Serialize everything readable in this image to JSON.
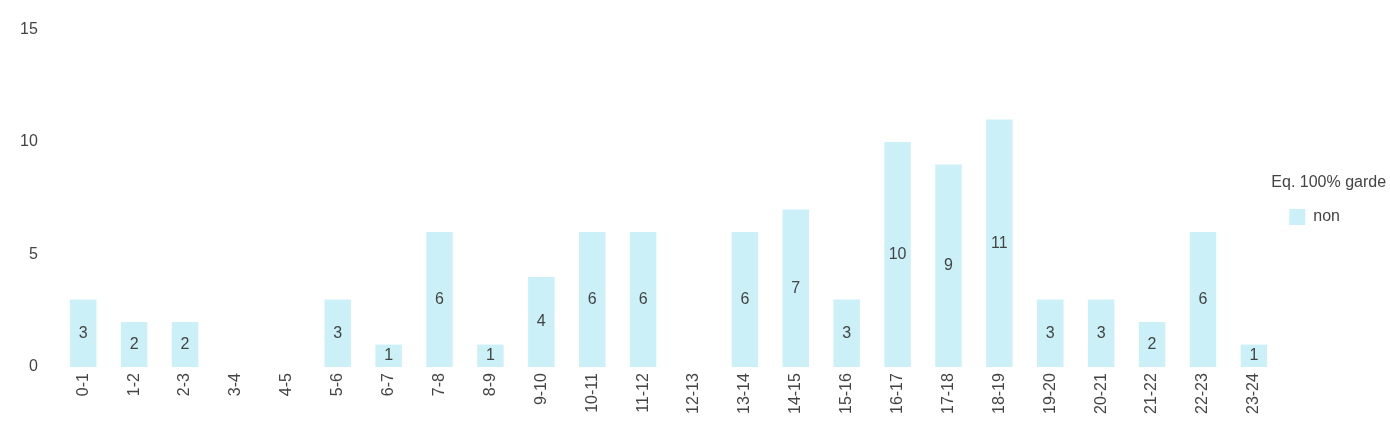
{
  "chart_data": {
    "type": "bar",
    "legend_title": "Eq. 100% garde",
    "categories": [
      "0-1",
      "1-2",
      "2-3",
      "3-4",
      "4-5",
      "5-6",
      "6-7",
      "7-8",
      "8-9",
      "9-10",
      "10-11",
      "11-12",
      "12-13",
      "13-14",
      "14-15",
      "15-16",
      "16-17",
      "17-18",
      "18-19",
      "19-20",
      "20-21",
      "21-22",
      "22-23",
      "23-24"
    ],
    "series": [
      {
        "name": "non",
        "color": "#ccf0f8",
        "values": [
          3,
          2,
          2,
          0,
          0,
          3,
          1,
          6,
          1,
          4,
          6,
          6,
          0,
          6,
          7,
          3,
          10,
          9,
          11,
          3,
          3,
          2,
          6,
          1
        ],
        "value_labels": [
          "3",
          "2",
          "2",
          null,
          null,
          "3",
          "1",
          "6",
          "1",
          "4",
          "6",
          "6",
          null,
          "6",
          "7",
          "3",
          "10",
          "9",
          "11",
          "3",
          "3",
          "2",
          "6",
          "1"
        ]
      }
    ],
    "ylim": [
      0,
      15
    ],
    "yticks": [
      0,
      5,
      10,
      15
    ],
    "grid": false,
    "legend": "right"
  }
}
